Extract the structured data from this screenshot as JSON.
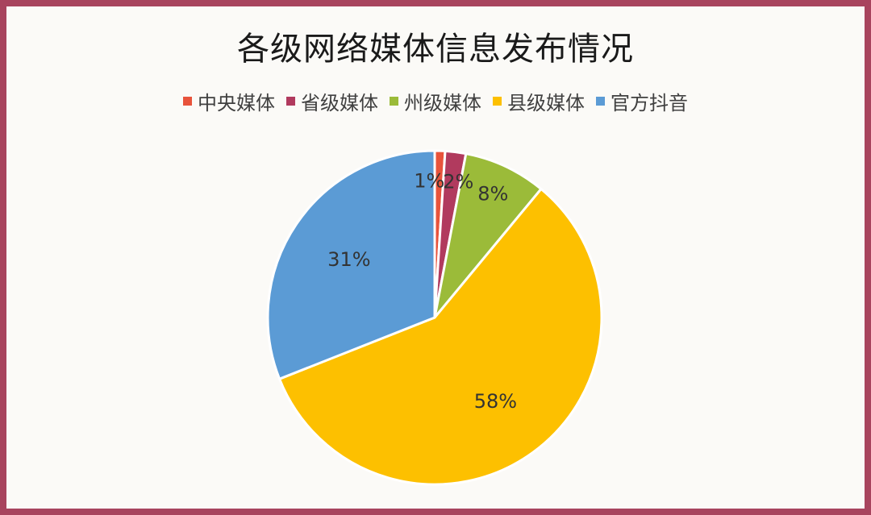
{
  "chart_data": {
    "type": "pie",
    "title": "各级网络媒体信息发布情况",
    "legend_position": "top",
    "slices": [
      {
        "name": "中央媒体",
        "value": 1,
        "label": "1%",
        "color": "#e8533b"
      },
      {
        "name": "省级媒体",
        "value": 2,
        "label": "2%",
        "color": "#b13a5e"
      },
      {
        "name": "州级媒体",
        "value": 8,
        "label": "8%",
        "color": "#9bbb39"
      },
      {
        "name": "县级媒体",
        "value": 58,
        "label": "58%",
        "color": "#fdc000"
      },
      {
        "name": "官方抖音",
        "value": 31,
        "label": "31%",
        "color": "#5b9bd5"
      }
    ]
  },
  "colors": {
    "border": "#a8445e",
    "background": "#fbfaf7"
  }
}
